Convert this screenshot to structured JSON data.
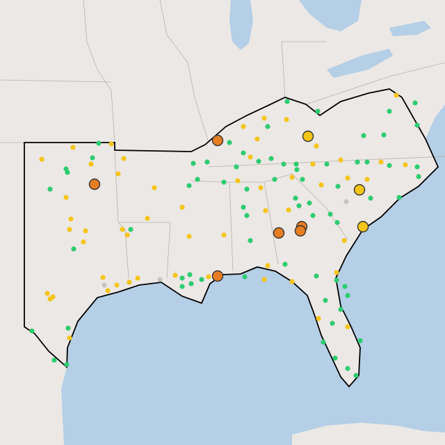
{
  "map": {
    "land_color": "#ece8e5",
    "water_color": "#b4cfe6",
    "border_color": "#000000",
    "dot_colors": [
      "#2ecc71",
      "#f5c518",
      "#c4c4c4"
    ],
    "highlight_colors": [
      "#e67e22",
      "#f5c518"
    ]
  }
}
